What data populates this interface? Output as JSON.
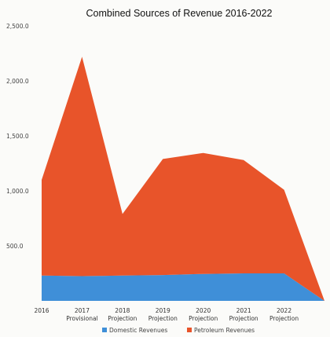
{
  "chart_data": {
    "type": "area",
    "stacked": true,
    "title": "Combined Sources of Revenue 2016-2022",
    "categories": [
      [
        "2016"
      ],
      [
        "2017",
        "Provisional"
      ],
      [
        "2018",
        "Projection"
      ],
      [
        "2019",
        "Projection"
      ],
      [
        "2020",
        "Projection"
      ],
      [
        "2021",
        "Projection"
      ],
      [
        "2022",
        "Projection"
      ],
      [
        ""
      ]
    ],
    "series": [
      {
        "name": "Domestic Revenues",
        "color": "#3f8fd8",
        "values": [
          230,
          225,
          230,
          235,
          245,
          250,
          250,
          0
        ]
      },
      {
        "name": "Petroleum Revenues",
        "color": "#e8542a",
        "values": [
          870,
          1995,
          560,
          1055,
          1100,
          1030,
          760,
          0
        ]
      }
    ],
    "y_ticks": [
      "2,500.0",
      "2,000.0",
      "1,500.0",
      "1,000.0",
      "500.0"
    ],
    "y_tick_values": [
      2500,
      2000,
      1500,
      1000,
      500
    ],
    "ylim": [
      0,
      2500
    ],
    "grid": false,
    "legend_position": "bottom"
  }
}
